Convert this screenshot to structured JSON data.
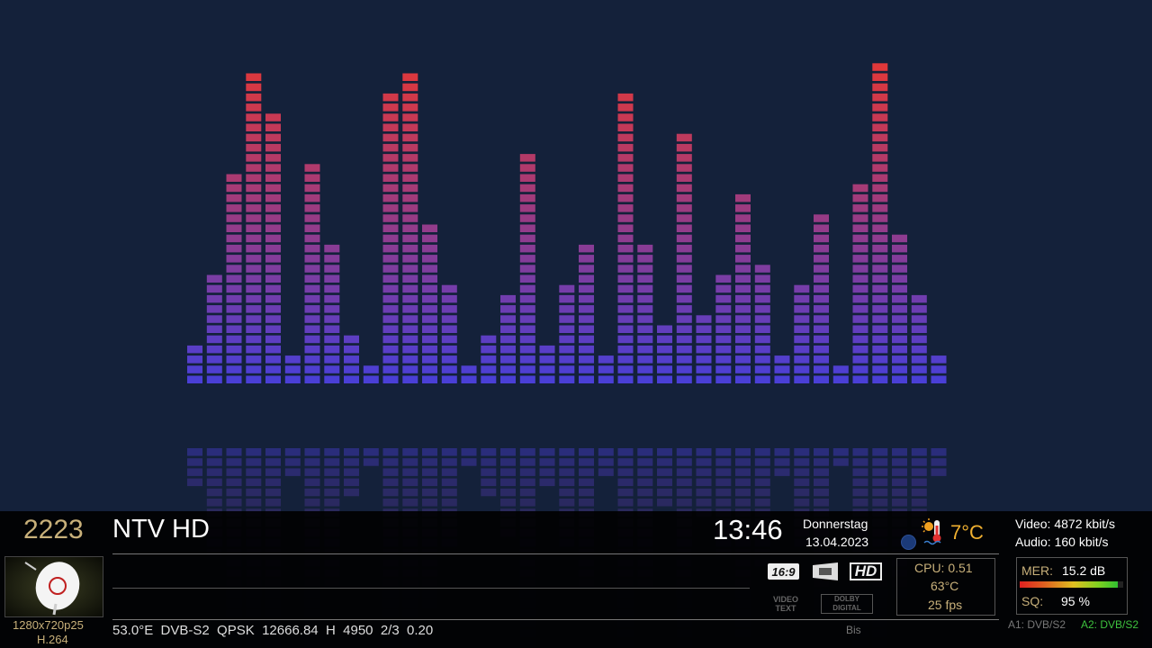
{
  "channel": {
    "number": "2223",
    "name": "NTV HD"
  },
  "clock": {
    "time": "13:46",
    "weekday": "Donnerstag",
    "date": "13.04.2023"
  },
  "weather": {
    "temp": "7°C",
    "icon": "thermometer-sun-icon"
  },
  "bitrate": {
    "video": "Video: 4872 kbit/s",
    "audio": "Audio: 160 kbit/s"
  },
  "signal": {
    "mer_label": "MER:",
    "mer_value": "15.2 dB",
    "sq_label": "SQ:",
    "sq_value": "95 %",
    "sq_level": 0.95
  },
  "system": {
    "cpu": "CPU: 0.51",
    "temp": "63°C",
    "fps": "25 fps"
  },
  "video_info": {
    "resolution": "1280x720p25",
    "codec": "H.264"
  },
  "transponder": "53.0°E  DVB-S2  QPSK  12666.84  H  4950  2/3  0.20",
  "epg": {
    "bis_label": "Bis"
  },
  "audio_tracks": {
    "a1": "A1: DVB/S2",
    "a2": "A2: DVB/S2"
  },
  "badges": {
    "aspect": "16:9",
    "hd": "HD",
    "videotext": "VIDEO TEXT",
    "dolby": "DOLBY DIGITAL"
  },
  "colors": {
    "bar_low": "#4a3fd6",
    "bar_high": "#e0383a",
    "gold": "#c8b07a",
    "green": "#3ec23e"
  },
  "chart_data": {
    "type": "bar",
    "levels": [
      4,
      11,
      21,
      31,
      27,
      3,
      22,
      14,
      5,
      2,
      29,
      31,
      16,
      10,
      2,
      5,
      9,
      23,
      4,
      10,
      14,
      3,
      29,
      14,
      6,
      25,
      7,
      11,
      19,
      12,
      3,
      10,
      17,
      2,
      20,
      32,
      15,
      9,
      3
    ]
  }
}
